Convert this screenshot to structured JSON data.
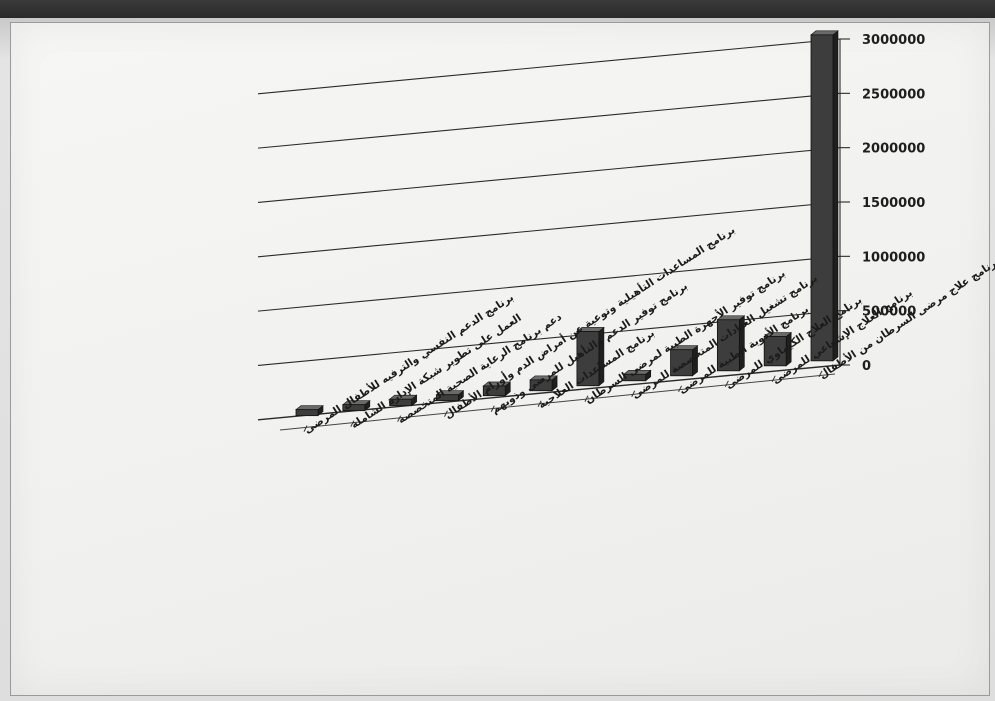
{
  "chart_data": {
    "type": "bar",
    "title": "",
    "xlabel": "",
    "ylabel": "",
    "ylim": [
      0,
      3000000
    ],
    "yticks": [
      0,
      500000,
      1000000,
      1500000,
      2000000,
      2500000,
      3000000
    ],
    "ytick_labels": [
      "0",
      "500000",
      "1000000",
      "1500000",
      "2000000",
      "2500000",
      "3000000"
    ],
    "grid": true,
    "legend": "none",
    "bar_color": "#3d3d3d",
    "categories": [
      "برنامج الدعم النفسي والترفيه للأطفال المرضى",
      "العمل على تطوير شبكة الإدارة الشاملة",
      "دعم برنامج الرعاية الصحية المتخصصة",
      "برنامج المساعدات التأهيلية وتوعية عن أمراض الدم وأورام الأطفال",
      "برنامج توفير الدعم والتأهيل للمرضى وذويهم",
      "برنامج المساعدات العلاجية",
      "برنامج توفير الأجهزة الطبية لمرضى السرطان",
      "برنامج تشغيل العيادات المتخصصة للمرضى",
      "برنامج الأدوية الطبية للمرضى",
      "برنامج العلاج الكيماوي للمرضى",
      "برنامج العلاج الإشعاعي للمرضى",
      "برنامج علاج مرضى السرطان من الأطفال"
    ],
    "values": [
      30000,
      20000,
      60000,
      30000,
      90000,
      100000,
      500000,
      60000,
      240000,
      470000,
      270000,
      3000000
    ]
  }
}
